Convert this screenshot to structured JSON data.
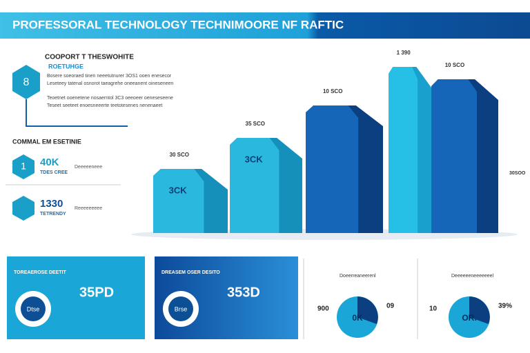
{
  "header": {
    "title": "PROFESSORAL TECHNOLOGY TECHNIMOORE NF RAFTIC"
  },
  "summary": {
    "heading": "COOPORT T THESWOHITE",
    "subheading": "ROETUHGE",
    "badge": "8",
    "lines": [
      "Bosere soeoraed tinen neeetutnurer 3OS1 ooen enesecor",
      "Leseteey tatenal osnorot taeagrehe oneeanent oineseneen",
      "Teoetnet ooenetene nosaerntol 3C3 oeeoeer oeneseseene",
      "Teseet seeteet enoesneeerte teetotesenes nenenaeet"
    ]
  },
  "metrics": {
    "heading": "COMMAL EM ESETINIE",
    "items": [
      {
        "badge": "1",
        "value": "40K",
        "caption": "TDES CREE",
        "note": "Deeeeeneee"
      },
      {
        "value": "1330",
        "caption": "TETRENDY",
        "note": "Reeeeeeeee"
      }
    ]
  },
  "bars": [
    {
      "caption": "30 SCO",
      "label": "3CK"
    },
    {
      "caption": "35 SCO",
      "label": "3CK"
    },
    {
      "caption": "10 SCO",
      "label": ""
    },
    {
      "caption": "1 390",
      "label": ""
    },
    {
      "caption": "10 SCO",
      "label": ""
    }
  ],
  "side_note": "30SOO",
  "cards": [
    {
      "title": "TOREAEROSE DEETIT",
      "value": "35PD",
      "center": "Dtse"
    },
    {
      "title": "DREASEM OSER DESITO",
      "value": "353D",
      "center": "Brse"
    }
  ],
  "donuts": [
    {
      "title": "Doeerreaneerenl",
      "value": "900",
      "center": "0K",
      "percent": "09"
    },
    {
      "title": "Deeeeeeneeeeeeel",
      "value": "10",
      "center": "OR.",
      "percent": "39%"
    }
  ]
}
